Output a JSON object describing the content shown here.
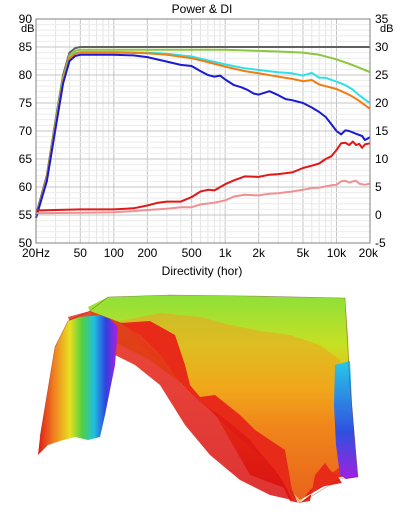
{
  "chart_data": [
    {
      "type": "line",
      "title": "Power & DI",
      "ylabel_left": "dB",
      "ylabel_right": "dB",
      "x_scale": "log",
      "xlim": [
        20,
        20000
      ],
      "ylim_left": [
        50,
        90
      ],
      "ylim_right": [
        -5,
        35
      ],
      "x_ticks": [
        {
          "v": 20,
          "label": "20Hz"
        },
        {
          "v": 50,
          "label": "50"
        },
        {
          "v": 100,
          "label": "100"
        },
        {
          "v": 200,
          "label": "200"
        },
        {
          "v": 500,
          "label": "500"
        },
        {
          "v": 1000,
          "label": "1k"
        },
        {
          "v": 2000,
          "label": "2k"
        },
        {
          "v": 5000,
          "label": "5k"
        },
        {
          "v": 10000,
          "label": "10k"
        },
        {
          "v": 20000,
          "label": "20k"
        }
      ],
      "y_ticks_left": [
        {
          "v": 90,
          "label": "90"
        },
        {
          "v": 85,
          "label": "85"
        },
        {
          "v": 80,
          "label": "80"
        },
        {
          "v": 75,
          "label": "75"
        },
        {
          "v": 70,
          "label": "70"
        },
        {
          "v": 65,
          "label": "65"
        },
        {
          "v": 60,
          "label": "60"
        },
        {
          "v": 55,
          "label": "55"
        },
        {
          "v": 50,
          "label": "50"
        }
      ],
      "y_ticks_right": [
        {
          "v": 35,
          "label": "35"
        },
        {
          "v": 30,
          "label": "30"
        },
        {
          "v": 25,
          "label": "25"
        },
        {
          "v": 20,
          "label": "20"
        },
        {
          "v": 15,
          "label": "15"
        },
        {
          "v": 10,
          "label": "10"
        },
        {
          "v": 5,
          "label": "5"
        },
        {
          "v": 0,
          "label": "0"
        },
        {
          "v": -5,
          "label": "-5"
        }
      ],
      "grid": true,
      "series": [
        {
          "color": "#606060",
          "axis": "left",
          "points": [
            [
              20,
              55
            ],
            [
              25,
              62
            ],
            [
              30,
              72
            ],
            [
              35,
              80
            ],
            [
              40,
              84
            ],
            [
              45,
              84.8
            ],
            [
              50,
              85
            ],
            [
              100,
              85
            ],
            [
              200,
              85
            ],
            [
              500,
              85
            ],
            [
              1000,
              85
            ],
            [
              2000,
              85
            ],
            [
              5000,
              85
            ],
            [
              10000,
              85
            ],
            [
              20000,
              85
            ]
          ]
        },
        {
          "color": "#8cc63f",
          "axis": "left",
          "points": [
            [
              20,
              54.5
            ],
            [
              25,
              61.5
            ],
            [
              30,
              71.5
            ],
            [
              35,
              79.5
            ],
            [
              40,
              83.5
            ],
            [
              45,
              84.3
            ],
            [
              50,
              84.5
            ],
            [
              100,
              84.5
            ],
            [
              200,
              84.5
            ],
            [
              500,
              84.5
            ],
            [
              1000,
              84.5
            ],
            [
              2000,
              84.3
            ],
            [
              3000,
              84.2
            ],
            [
              5000,
              84
            ],
            [
              7000,
              83.6
            ],
            [
              10000,
              82.8
            ],
            [
              13000,
              82
            ],
            [
              16000,
              81.3
            ],
            [
              20000,
              80.5
            ]
          ]
        },
        {
          "color": "#30e0e8",
          "axis": "left",
          "points": [
            [
              20,
              54.5
            ],
            [
              25,
              61.5
            ],
            [
              30,
              71
            ],
            [
              35,
              79
            ],
            [
              40,
              83
            ],
            [
              45,
              83.9
            ],
            [
              50,
              84.1
            ],
            [
              100,
              84.1
            ],
            [
              200,
              84
            ],
            [
              300,
              83.8
            ],
            [
              500,
              83.3
            ],
            [
              700,
              82.6
            ],
            [
              1000,
              81.9
            ],
            [
              1500,
              81.2
            ],
            [
              2000,
              80.9
            ],
            [
              3000,
              80.5
            ],
            [
              4000,
              80.3
            ],
            [
              5000,
              79.9
            ],
            [
              6000,
              80.4
            ],
            [
              7000,
              79.5
            ],
            [
              8000,
              79.5
            ],
            [
              10000,
              78.8
            ],
            [
              12000,
              78.2
            ],
            [
              14000,
              77.4
            ],
            [
              16000,
              76.4
            ],
            [
              18000,
              75.6
            ],
            [
              20000,
              75
            ]
          ]
        },
        {
          "color": "#f07d14",
          "axis": "left",
          "points": [
            [
              20,
              54.5
            ],
            [
              25,
              61.5
            ],
            [
              30,
              71
            ],
            [
              35,
              79
            ],
            [
              40,
              83
            ],
            [
              45,
              83.8
            ],
            [
              50,
              84
            ],
            [
              100,
              84
            ],
            [
              200,
              83.9
            ],
            [
              300,
              83.6
            ],
            [
              500,
              83
            ],
            [
              700,
              82.3
            ],
            [
              1000,
              81.5
            ],
            [
              1500,
              80.7
            ],
            [
              2000,
              80.3
            ],
            [
              3000,
              79.7
            ],
            [
              4000,
              79.3
            ],
            [
              5000,
              78.9
            ],
            [
              6000,
              79.1
            ],
            [
              7000,
              78.3
            ],
            [
              8000,
              78
            ],
            [
              10000,
              77.5
            ],
            [
              12000,
              76.8
            ],
            [
              14000,
              76.1
            ],
            [
              16000,
              75.4
            ],
            [
              18000,
              74.6
            ],
            [
              20000,
              74
            ]
          ]
        },
        {
          "color": "#1a1ad2",
          "axis": "left",
          "points": [
            [
              20,
              54.5
            ],
            [
              25,
              61
            ],
            [
              30,
              70.5
            ],
            [
              35,
              78.5
            ],
            [
              40,
              82.5
            ],
            [
              45,
              83.4
            ],
            [
              50,
              83.6
            ],
            [
              100,
              83.6
            ],
            [
              150,
              83.5
            ],
            [
              200,
              83.2
            ],
            [
              300,
              82.4
            ],
            [
              400,
              81.8
            ],
            [
              500,
              81.6
            ],
            [
              600,
              80.7
            ],
            [
              700,
              80
            ],
            [
              800,
              79.7
            ],
            [
              900,
              79.9
            ],
            [
              1000,
              79.2
            ],
            [
              1200,
              78.2
            ],
            [
              1400,
              77.8
            ],
            [
              1600,
              77.3
            ],
            [
              1800,
              76.7
            ],
            [
              2000,
              76.5
            ],
            [
              2500,
              77.1
            ],
            [
              3000,
              76.4
            ],
            [
              3500,
              75.7
            ],
            [
              4000,
              75.5
            ],
            [
              5000,
              75
            ],
            [
              6000,
              74.2
            ],
            [
              7000,
              73.4
            ],
            [
              8000,
              72.5
            ],
            [
              9000,
              71.2
            ],
            [
              10000,
              70
            ],
            [
              11000,
              69.4
            ],
            [
              12000,
              70.1
            ],
            [
              13000,
              70
            ],
            [
              15000,
              69.5
            ],
            [
              17000,
              69.1
            ],
            [
              18000,
              68.4
            ],
            [
              20000,
              68.9
            ]
          ]
        },
        {
          "color": "#e01818",
          "axis": "right",
          "points": [
            [
              20,
              0.8
            ],
            [
              30,
              0.9
            ],
            [
              50,
              1
            ],
            [
              100,
              1
            ],
            [
              150,
              1.2
            ],
            [
              200,
              1.7
            ],
            [
              250,
              2.2
            ],
            [
              300,
              2.4
            ],
            [
              400,
              2.4
            ],
            [
              500,
              3.2
            ],
            [
              600,
              4.2
            ],
            [
              700,
              4.5
            ],
            [
              800,
              4.4
            ],
            [
              1000,
              5.5
            ],
            [
              1200,
              6.2
            ],
            [
              1500,
              6.9
            ],
            [
              2000,
              6.8
            ],
            [
              2500,
              7.2
            ],
            [
              3000,
              7.3
            ],
            [
              4000,
              7.6
            ],
            [
              5000,
              8.4
            ],
            [
              6000,
              8.8
            ],
            [
              7000,
              9.2
            ],
            [
              8000,
              10
            ],
            [
              9000,
              10.5
            ],
            [
              10000,
              11.6
            ],
            [
              11000,
              12.8
            ],
            [
              12000,
              12.9
            ],
            [
              13000,
              12.5
            ],
            [
              14000,
              13.1
            ],
            [
              15000,
              12.5
            ],
            [
              16000,
              12.7
            ],
            [
              17000,
              12
            ],
            [
              18000,
              12.6
            ],
            [
              20000,
              12.8
            ]
          ]
        },
        {
          "color": "#f09090",
          "axis": "right",
          "points": [
            [
              20,
              0.3
            ],
            [
              50,
              0.4
            ],
            [
              100,
              0.5
            ],
            [
              150,
              0.7
            ],
            [
              200,
              0.9
            ],
            [
              300,
              1.1
            ],
            [
              400,
              1.4
            ],
            [
              500,
              1.4
            ],
            [
              600,
              1.9
            ],
            [
              800,
              2.2
            ],
            [
              1000,
              2.6
            ],
            [
              1200,
              3.3
            ],
            [
              1500,
              3.6
            ],
            [
              2000,
              3.5
            ],
            [
              2500,
              3.8
            ],
            [
              3000,
              3.9
            ],
            [
              4000,
              4.2
            ],
            [
              5000,
              4.5
            ],
            [
              6000,
              4.8
            ],
            [
              7000,
              4.9
            ],
            [
              8000,
              5.1
            ],
            [
              9000,
              5.3
            ],
            [
              10000,
              5.4
            ],
            [
              11000,
              6
            ],
            [
              12000,
              6.1
            ],
            [
              13000,
              5.8
            ],
            [
              14000,
              6
            ],
            [
              15000,
              6.1
            ],
            [
              16000,
              5.6
            ],
            [
              17000,
              5.5
            ],
            [
              18000,
              5.4
            ],
            [
              20000,
              5.6
            ]
          ]
        }
      ]
    },
    {
      "type": "heatmap",
      "title": "Directivity (hor)"
    }
  ]
}
